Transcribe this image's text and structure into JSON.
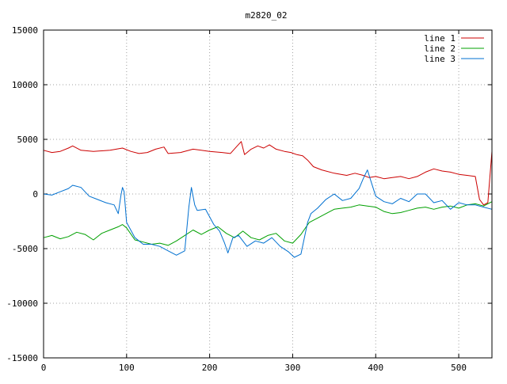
{
  "chart_data": {
    "type": "line",
    "title": "m2820_02",
    "xlabel": "",
    "ylabel": "",
    "xlim": [
      0,
      540
    ],
    "ylim": [
      -15000,
      15000
    ],
    "xticks": [
      0,
      100,
      200,
      300,
      400,
      500
    ],
    "yticks": [
      -15000,
      -10000,
      -5000,
      0,
      5000,
      10000,
      15000
    ],
    "grid": true,
    "legend_position": "top-right",
    "series": [
      {
        "name": "line 1",
        "color": "#cc0000",
        "x": [
          0,
          10,
          20,
          30,
          35,
          45,
          60,
          80,
          95,
          105,
          115,
          125,
          135,
          145,
          150,
          165,
          180,
          200,
          215,
          225,
          232,
          238,
          242,
          250,
          258,
          265,
          272,
          280,
          290,
          298,
          305,
          312,
          318,
          325,
          335,
          350,
          365,
          375,
          385,
          392,
          400,
          410,
          420,
          430,
          440,
          450,
          460,
          470,
          480,
          490,
          500,
          510,
          520,
          525,
          530,
          535,
          540
        ],
        "y": [
          4000,
          3800,
          3900,
          4200,
          4400,
          4000,
          3900,
          4000,
          4200,
          3900,
          3700,
          3800,
          4100,
          4300,
          3700,
          3800,
          4100,
          3900,
          3800,
          3700,
          4300,
          4800,
          3600,
          4100,
          4400,
          4200,
          4500,
          4100,
          3900,
          3800,
          3600,
          3500,
          3100,
          2500,
          2200,
          1900,
          1700,
          1900,
          1700,
          1500,
          1600,
          1400,
          1500,
          1600,
          1400,
          1600,
          2000,
          2300,
          2100,
          2000,
          1800,
          1700,
          1600,
          -500,
          -1000,
          -800,
          3900
        ]
      },
      {
        "name": "line 2",
        "color": "#00a000",
        "x": [
          0,
          10,
          20,
          30,
          40,
          50,
          60,
          70,
          80,
          90,
          95,
          100,
          110,
          120,
          130,
          140,
          150,
          160,
          170,
          180,
          190,
          200,
          210,
          220,
          230,
          240,
          250,
          260,
          270,
          280,
          290,
          300,
          310,
          320,
          330,
          340,
          350,
          360,
          370,
          380,
          390,
          400,
          410,
          420,
          430,
          440,
          450,
          460,
          470,
          480,
          490,
          500,
          510,
          520,
          530,
          540
        ],
        "y": [
          -4000,
          -3800,
          -4100,
          -3900,
          -3500,
          -3700,
          -4200,
          -3600,
          -3300,
          -3000,
          -2800,
          -3100,
          -4200,
          -4400,
          -4600,
          -4500,
          -4700,
          -4300,
          -3800,
          -3300,
          -3700,
          -3300,
          -3000,
          -3600,
          -4000,
          -3400,
          -4000,
          -4200,
          -3800,
          -3600,
          -4300,
          -4500,
          -3700,
          -2600,
          -2200,
          -1800,
          -1400,
          -1300,
          -1200,
          -1000,
          -1100,
          -1200,
          -1600,
          -1800,
          -1700,
          -1500,
          -1300,
          -1200,
          -1400,
          -1200,
          -1100,
          -1300,
          -1000,
          -900,
          -1100,
          -700
        ]
      },
      {
        "name": "line 3",
        "color": "#0070d0",
        "x": [
          0,
          10,
          20,
          30,
          35,
          45,
          55,
          65,
          75,
          85,
          90,
          93,
          95,
          97,
          100,
          110,
          120,
          130,
          140,
          150,
          160,
          170,
          175,
          178,
          182,
          185,
          195,
          205,
          212,
          218,
          222,
          228,
          235,
          245,
          255,
          265,
          275,
          285,
          295,
          302,
          310,
          318,
          322,
          330,
          340,
          350,
          360,
          370,
          380,
          385,
          390,
          395,
          400,
          410,
          420,
          430,
          440,
          450,
          460,
          470,
          480,
          490,
          500,
          510,
          520,
          530,
          540
        ],
        "y": [
          0,
          -100,
          200,
          500,
          800,
          600,
          -200,
          -500,
          -800,
          -1000,
          -1800,
          -200,
          600,
          200,
          -2600,
          -4000,
          -4600,
          -4600,
          -4800,
          -5200,
          -5600,
          -5200,
          -1200,
          600,
          -1000,
          -1500,
          -1400,
          -2800,
          -3400,
          -4500,
          -5400,
          -4000,
          -3800,
          -4800,
          -4300,
          -4500,
          -4000,
          -4800,
          -5300,
          -5800,
          -5500,
          -2600,
          -1800,
          -1300,
          -500,
          0,
          -600,
          -400,
          500,
          1400,
          2200,
          1000,
          -200,
          -700,
          -900,
          -400,
          -700,
          0,
          0,
          -800,
          -600,
          -1400,
          -800,
          -1000,
          -1000,
          -1200,
          -1400
        ]
      }
    ]
  }
}
